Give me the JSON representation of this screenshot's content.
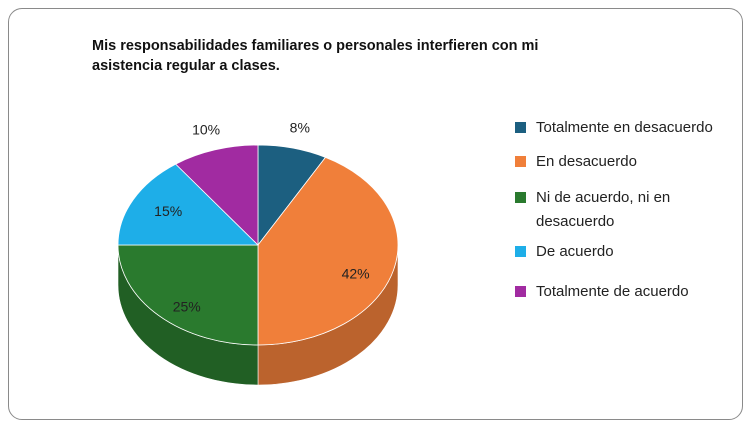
{
  "chart_data": {
    "type": "pie",
    "title": "Mis responsabilidades familiares o personales interfieren con mi asistencia regular a clases.",
    "categories": [
      "Totalmente en desacuerdo",
      "En desacuerdo",
      "Ni de acuerdo, ni en desacuerdo",
      "De acuerdo",
      "Totalmente de acuerdo"
    ],
    "values": [
      8,
      42,
      25,
      15,
      10
    ],
    "value_labels": [
      "8%",
      "42%",
      "25%",
      "15%",
      "10%"
    ],
    "colors": [
      "#1c5f80",
      "#f07f3a",
      "#2a7a2e",
      "#1eaee8",
      "#a12ba1"
    ],
    "legend": "right"
  }
}
